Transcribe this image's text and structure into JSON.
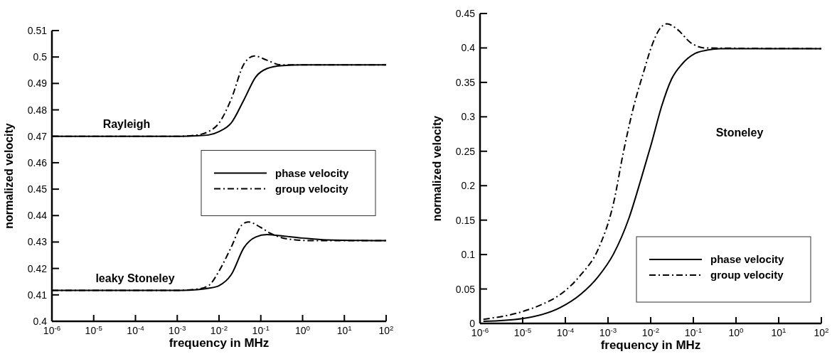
{
  "chart_data": [
    {
      "type": "line",
      "xlabel": "frequency in MHz",
      "ylabel": "normalized velocity",
      "log": "x",
      "legend": "right",
      "xlim": [
        1e-06,
        100
      ],
      "ylim": [
        0.4,
        0.51
      ],
      "xticks": [
        {
          "value": 1e-06,
          "label": "10$^{-6}$"
        },
        {
          "value": 1e-05,
          "label": "10$^{-5}$"
        },
        {
          "value": 0.0001,
          "label": "10$^{-4}$"
        },
        {
          "value": 0.001,
          "label": "10$^{-3}$"
        },
        {
          "value": 0.01,
          "label": "10$^{-2}$"
        },
        {
          "value": 0.1,
          "label": "10$^{-1}$"
        },
        {
          "value": 1,
          "label": "10$^{0}$"
        },
        {
          "value": 10,
          "label": "10$^{1}$"
        },
        {
          "value": 100,
          "label": "10$^{2}$"
        }
      ],
      "yticks": [
        0.4,
        0.41,
        0.42,
        0.43,
        0.44,
        0.45,
        0.46,
        0.47,
        0.48,
        0.49,
        0.5,
        0.51
      ],
      "series": [
        {
          "name": "phase velocity",
          "color": "#000000",
          "line_style": "solid",
          "x": [
            1e-06,
            0.001,
            0.003,
            0.0056,
            0.01,
            0.0195,
            0.04,
            0.076,
            0.14,
            0.3,
            1,
            100
          ],
          "values": [
            0.47,
            0.47,
            0.4702,
            0.4705,
            0.4718,
            0.475,
            0.484,
            0.4925,
            0.4956,
            0.4967,
            0.497,
            0.497
          ]
        },
        {
          "name": "group velocity",
          "color": "#000000",
          "line_style": "dashdot",
          "x": [
            1e-06,
            0.001,
            0.003,
            0.0056,
            0.01,
            0.0195,
            0.04,
            0.07,
            0.14,
            0.3,
            1,
            100
          ],
          "values": [
            0.47,
            0.47,
            0.4705,
            0.4718,
            0.475,
            0.484,
            0.4975,
            0.5004,
            0.4988,
            0.497,
            0.497,
            0.497
          ]
        },
        {
          "color": "#000000",
          "line_style": "solid",
          "x": [
            1e-06,
            0.001,
            0.003,
            0.0056,
            0.01,
            0.0195,
            0.04,
            0.076,
            0.14,
            0.28,
            1,
            3.7,
            100
          ],
          "values": [
            0.4117,
            0.4117,
            0.412,
            0.4125,
            0.4135,
            0.4176,
            0.428,
            0.4319,
            0.4328,
            0.4324,
            0.4315,
            0.4308,
            0.4305
          ]
        },
        {
          "color": "#000000",
          "line_style": "dashdot",
          "x": [
            1e-06,
            0.001,
            0.003,
            0.0056,
            0.01,
            0.0195,
            0.035,
            0.05,
            0.1,
            0.17,
            0.52,
            2,
            100
          ],
          "values": [
            0.4117,
            0.4117,
            0.4122,
            0.4135,
            0.419,
            0.428,
            0.4364,
            0.4376,
            0.4355,
            0.4333,
            0.431,
            0.4305,
            0.4305
          ]
        }
      ],
      "annotations": [
        "Rayleigh",
        "leaky Stoneley"
      ]
    },
    {
      "type": "line",
      "xlabel": "frequency in MHz",
      "ylabel": "normalized velocity",
      "log": "x",
      "legend": "bottom right",
      "xlim": [
        1e-06,
        100
      ],
      "ylim": [
        0,
        0.45
      ],
      "xticks": [
        {
          "value": 1e-06,
          "label": "10$^{-6}$"
        },
        {
          "value": 1e-05,
          "label": "10$^{-5}$"
        },
        {
          "value": 0.0001,
          "label": "10$^{-4}$"
        },
        {
          "value": 0.001,
          "label": "10$^{-3}$"
        },
        {
          "value": 0.01,
          "label": "10$^{-2}$"
        },
        {
          "value": 0.1,
          "label": "10$^{-1}$"
        },
        {
          "value": 1,
          "label": "10$^{0}$"
        },
        {
          "value": 10,
          "label": "10$^{1}$"
        },
        {
          "value": 100,
          "label": "10$^{2}$"
        }
      ],
      "yticks": [
        0,
        0.05,
        0.1,
        0.15,
        0.2,
        0.25,
        0.3,
        0.35,
        0.4,
        0.45
      ],
      "series": [
        {
          "name": "phase velocity",
          "color": "#000000",
          "line_style": "solid",
          "x": [
            1.2e-06,
            9.6e-06,
            7.6e-05,
            0.000226,
            0.00059,
            0.00135,
            0.0031,
            0.0061,
            0.0106,
            0.018,
            0.031,
            0.055,
            0.11,
            0.22,
            0.42,
            100
          ],
          "values": [
            0.003,
            0.007,
            0.023,
            0.042,
            0.068,
            0.101,
            0.153,
            0.212,
            0.263,
            0.315,
            0.355,
            0.377,
            0.392,
            0.397,
            0.399,
            0.399
          ]
        },
        {
          "name": "group velocity",
          "color": "#000000",
          "line_style": "dashdot",
          "x": [
            1.2e-06,
            9.6e-06,
            2.9e-05,
            7.6e-05,
            0.000226,
            0.00059,
            0.00135,
            0.0023,
            0.004,
            0.0069,
            0.0106,
            0.016,
            0.024,
            0.042,
            0.085,
            0.19,
            100
          ],
          "values": [
            0.006,
            0.017,
            0.028,
            0.042,
            0.07,
            0.108,
            0.175,
            0.249,
            0.315,
            0.366,
            0.403,
            0.427,
            0.435,
            0.427,
            0.408,
            0.4,
            0.399
          ]
        }
      ],
      "annotations": [
        "Stoneley"
      ]
    }
  ]
}
